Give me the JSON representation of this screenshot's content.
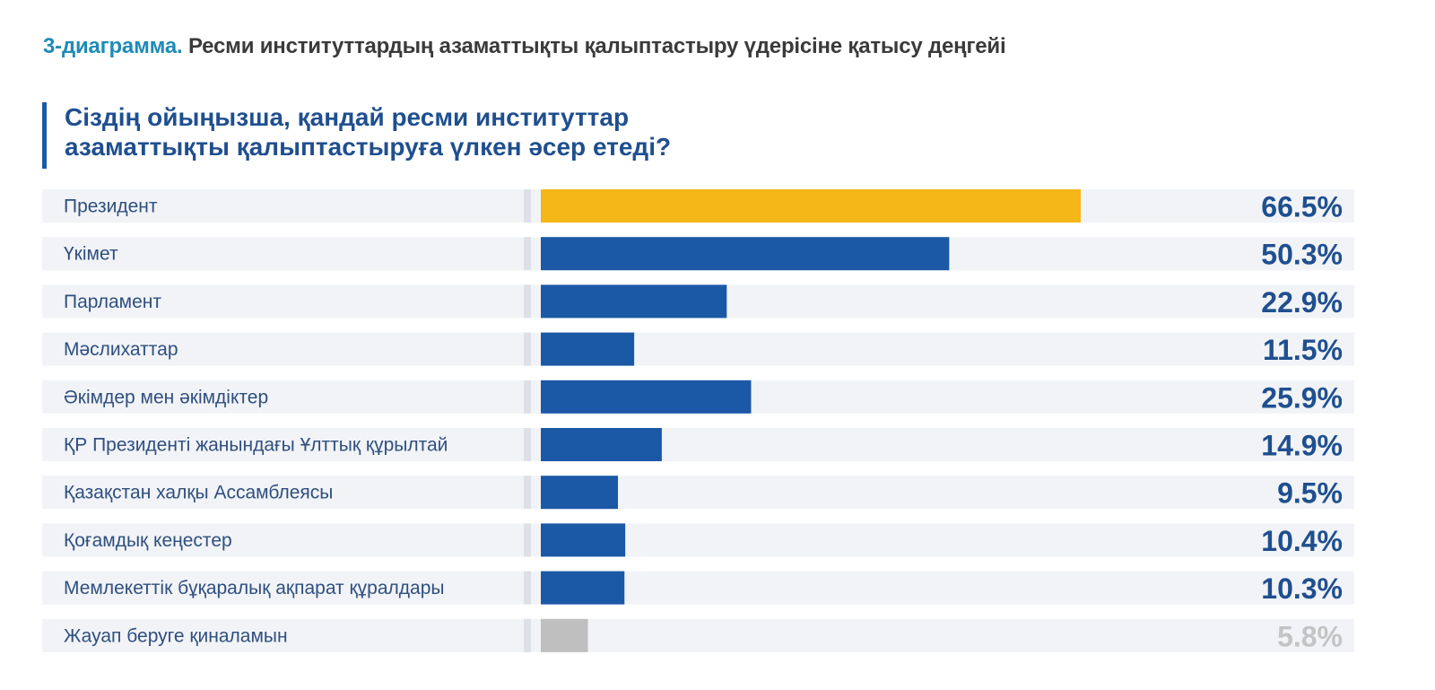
{
  "header": {
    "figure_number": "3-диаграмма.",
    "figure_title": "Ресми институттардың азаматтықты қалыптастыру үдерісіне қатысу деңгейі",
    "question_line1": "Сіздің ойыңызша, қандай ресми институттар",
    "question_line2": "азаматтықты қалыптастыруға үлкен әсер етеді?"
  },
  "colors": {
    "highlight": "#f5b617",
    "primary": "#1b58a6",
    "neutral": "#bfbfbf",
    "row_background": "#f1f3f7",
    "separator": "#dde1e7",
    "label_text": "#2f4f7f",
    "value_text": "#1f4f8f",
    "neutral_text": "#c4c4c4"
  },
  "chart_data": {
    "type": "bar",
    "orientation": "horizontal",
    "unit": "%",
    "xlim": [
      0,
      100
    ],
    "grid": false,
    "legend": "none",
    "categories": [
      "Президент",
      "Үкімет",
      "Парламент",
      "Мәслихаттар",
      "Әкімдер мен әкімдіктер",
      "ҚР Президенті жанындағы Ұлттық құрылтай",
      "Қазақстан халқы Ассамблеясы",
      "Қоғамдық кеңестер",
      "Мемлекеттік бұқаралық ақпарат құралдары",
      "Жауап беруге қиналамын"
    ],
    "values": [
      66.5,
      50.3,
      22.9,
      11.5,
      25.9,
      14.9,
      9.5,
      10.4,
      10.3,
      5.8
    ],
    "value_labels": [
      "66.5%",
      "50.3%",
      "22.9%",
      "11.5%",
      "25.9%",
      "14.9%",
      "9.5%",
      "10.4%",
      "10.3%",
      "5.8%"
    ],
    "bar_styles": [
      "highlight",
      "primary",
      "primary",
      "primary",
      "primary",
      "primary",
      "primary",
      "primary",
      "primary",
      "neutral"
    ]
  }
}
